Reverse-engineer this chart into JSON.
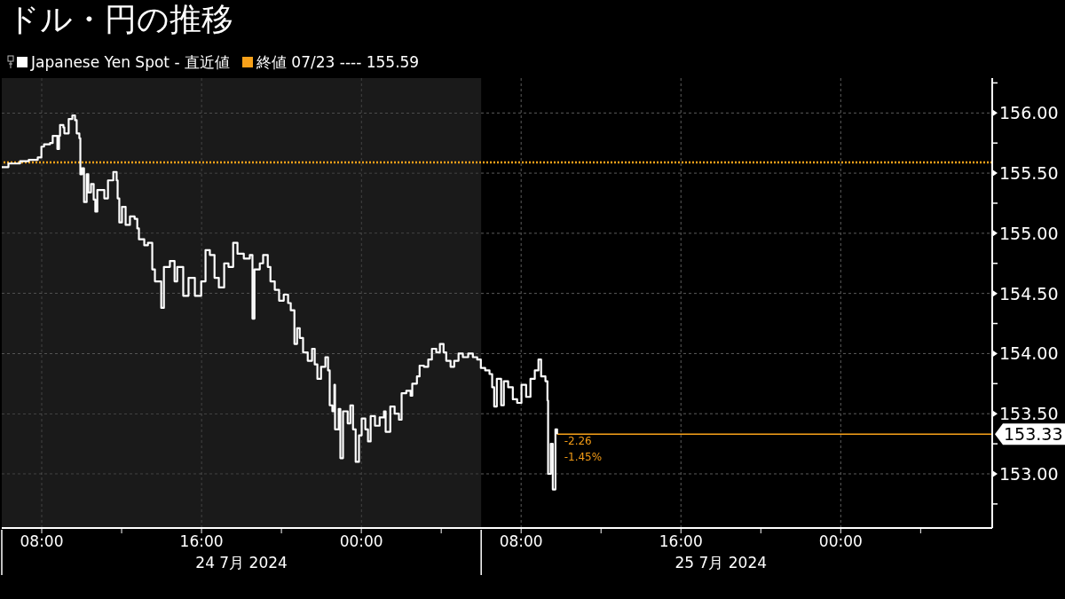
{
  "chart_data": {
    "type": "step",
    "title": "ドル・円の推移",
    "x": [
      "2024-07-24T06:00",
      "2024-07-24T06:20",
      "2024-07-24T06:55",
      "2024-07-24T07:21",
      "2024-07-24T07:48",
      "2024-07-24T07:59",
      "2024-07-24T08:07",
      "2024-07-24T08:25",
      "2024-07-24T08:33",
      "2024-07-24T08:47",
      "2024-07-24T08:52",
      "2024-07-24T08:55",
      "2024-07-24T09:05",
      "2024-07-24T09:08",
      "2024-07-24T09:21",
      "2024-07-24T09:32",
      "2024-07-24T09:40",
      "2024-07-24T09:45",
      "2024-07-24T09:53",
      "2024-07-24T09:56",
      "2024-07-24T10:01",
      "2024-07-24T10:07",
      "2024-07-24T10:15",
      "2024-07-24T10:20",
      "2024-07-24T10:28",
      "2024-07-24T10:36",
      "2024-07-24T10:41",
      "2024-07-24T10:47",
      "2024-07-24T11:08",
      "2024-07-24T11:19",
      "2024-07-24T11:35",
      "2024-07-24T11:45",
      "2024-07-24T11:48",
      "2024-07-24T11:53",
      "2024-07-24T12:01",
      "2024-07-24T12:12",
      "2024-07-24T12:25",
      "2024-07-24T12:39",
      "2024-07-24T12:47",
      "2024-07-24T12:52",
      "2024-07-24T13:08",
      "2024-07-24T13:19",
      "2024-07-24T13:32",
      "2024-07-24T13:40",
      "2024-07-24T13:59",
      "2024-07-24T14:07",
      "2024-07-24T14:25",
      "2024-07-24T14:39",
      "2024-07-24T14:47",
      "2024-07-24T15:05",
      "2024-07-24T15:21",
      "2024-07-24T15:40",
      "2024-07-24T15:59",
      "2024-07-24T16:12",
      "2024-07-24T16:25",
      "2024-07-24T16:39",
      "2024-07-24T16:52",
      "2024-07-24T17:08",
      "2024-07-24T17:21",
      "2024-07-24T17:35",
      "2024-07-24T17:48",
      "2024-07-24T18:07",
      "2024-07-24T18:25",
      "2024-07-24T18:33",
      "2024-07-24T18:39",
      "2024-07-24T18:55",
      "2024-07-24T19:05",
      "2024-07-24T19:19",
      "2024-07-24T19:27",
      "2024-07-24T19:40",
      "2024-07-24T19:53",
      "2024-07-24T20:07",
      "2024-07-24T20:20",
      "2024-07-24T20:28",
      "2024-07-24T20:39",
      "2024-07-24T20:47",
      "2024-07-24T20:55",
      "2024-07-24T21:05",
      "2024-07-24T21:19",
      "2024-07-24T21:32",
      "2024-07-24T21:40",
      "2024-07-24T21:48",
      "2024-07-24T21:59",
      "2024-07-24T22:12",
      "2024-07-24T22:20",
      "2024-07-24T22:25",
      "2024-07-24T22:33",
      "2024-07-24T22:39",
      "2024-07-24T22:41",
      "2024-07-24T22:52",
      "2024-07-24T22:57",
      "2024-07-24T23:05",
      "2024-07-24T23:19",
      "2024-07-24T23:27",
      "2024-07-24T23:35",
      "2024-07-24T23:43",
      "2024-07-24T23:53",
      "2024-07-25T00:01",
      "2024-07-25T00:12",
      "2024-07-25T00:20",
      "2024-07-25T00:28",
      "2024-07-25T00:41",
      "2024-07-25T00:55",
      "2024-07-25T01:08",
      "2024-07-25T01:13",
      "2024-07-25T01:27",
      "2024-07-25T01:40",
      "2024-07-25T01:53",
      "2024-07-25T02:01",
      "2024-07-25T02:15",
      "2024-07-25T02:28",
      "2024-07-25T02:33",
      "2024-07-25T02:47",
      "2024-07-25T02:55",
      "2024-07-25T03:08",
      "2024-07-25T03:21",
      "2024-07-25T03:32",
      "2024-07-25T03:45",
      "2024-07-25T03:56",
      "2024-07-25T04:07",
      "2024-07-25T04:15",
      "2024-07-25T04:28",
      "2024-07-25T04:39",
      "2024-07-25T04:52",
      "2024-07-25T05:05",
      "2024-07-25T05:21",
      "2024-07-25T05:35",
      "2024-07-25T05:48",
      "2024-07-25T05:59",
      "2024-07-25T06:12",
      "2024-07-25T06:25",
      "2024-07-25T06:33",
      "2024-07-25T06:39",
      "2024-07-25T06:47",
      "2024-07-25T07:00",
      "2024-07-25T07:08",
      "2024-07-25T07:21",
      "2024-07-25T07:35",
      "2024-07-25T07:48",
      "2024-07-25T08:01",
      "2024-07-25T08:15",
      "2024-07-25T08:28",
      "2024-07-25T08:41",
      "2024-07-25T08:52",
      "2024-07-25T09:00",
      "2024-07-25T09:13",
      "2024-07-25T09:19",
      "2024-07-25T09:21",
      "2024-07-25T09:29",
      "2024-07-25T09:35",
      "2024-07-25T09:43",
      "2024-07-25T09:48"
    ],
    "series": [
      {
        "name": "Japanese Yen Spot - 直近値",
        "color": "#ffffff",
        "values": [
          155.55,
          155.58,
          155.6,
          155.61,
          155.63,
          155.72,
          155.74,
          155.75,
          155.81,
          155.7,
          155.81,
          155.9,
          155.88,
          155.83,
          155.95,
          155.98,
          155.94,
          155.83,
          155.79,
          155.49,
          155.54,
          155.26,
          155.49,
          155.34,
          155.41,
          155.28,
          155.18,
          155.36,
          155.29,
          155.44,
          155.51,
          155.44,
          155.29,
          155.09,
          155.22,
          155.07,
          155.14,
          155.12,
          155.04,
          154.95,
          154.9,
          154.92,
          154.7,
          154.6,
          154.38,
          154.72,
          154.77,
          154.6,
          154.72,
          154.48,
          154.63,
          154.48,
          154.6,
          154.86,
          154.82,
          154.63,
          154.55,
          154.75,
          154.72,
          154.92,
          154.83,
          154.79,
          154.82,
          154.29,
          154.7,
          154.75,
          154.82,
          154.72,
          154.6,
          154.53,
          154.44,
          154.49,
          154.42,
          154.36,
          154.08,
          154.21,
          154.13,
          154.01,
          153.94,
          154.04,
          153.91,
          153.79,
          153.89,
          153.97,
          153.86,
          153.57,
          153.52,
          153.74,
          153.37,
          153.54,
          153.13,
          153.52,
          153.42,
          153.57,
          153.37,
          153.1,
          153.32,
          153.46,
          153.37,
          153.27,
          153.48,
          153.4,
          153.47,
          153.52,
          153.35,
          153.56,
          153.5,
          153.45,
          153.67,
          153.69,
          153.65,
          153.75,
          153.81,
          153.9,
          153.89,
          153.95,
          154.04,
          154.01,
          154.08,
          154.01,
          153.94,
          153.89,
          153.94,
          154.0,
          153.97,
          154.0,
          153.97,
          153.95,
          153.88,
          153.86,
          153.83,
          153.72,
          153.56,
          153.79,
          153.57,
          153.77,
          153.72,
          153.62,
          153.59,
          153.74,
          153.64,
          153.79,
          153.86,
          153.95,
          153.81,
          153.77,
          153.61,
          153.0,
          153.25,
          152.87,
          153.37,
          153.33
        ]
      }
    ],
    "xlim": [
      "2024-07-24T06:00",
      "2024-07-26T07:35"
    ],
    "xticks": [
      {
        "value": "2024-07-24T08:00",
        "label": "08:00"
      },
      {
        "value": "2024-07-24T12:00",
        "label": null
      },
      {
        "value": "2024-07-24T16:00",
        "label": "16:00"
      },
      {
        "value": "2024-07-24T20:00",
        "label": null
      },
      {
        "value": "2024-07-25T00:00",
        "label": "00:00"
      },
      {
        "value": "2024-07-25T04:00",
        "label": null
      },
      {
        "value": "2024-07-25T08:00",
        "label": "08:00"
      },
      {
        "value": "2024-07-25T12:00",
        "label": null
      },
      {
        "value": "2024-07-25T16:00",
        "label": "16:00"
      },
      {
        "value": "2024-07-25T20:00",
        "label": null
      },
      {
        "value": "2024-07-26T00:00",
        "label": "00:00"
      },
      {
        "value": "2024-07-26T04:00",
        "label": null
      }
    ],
    "x2lim": [
      "2024-07-24T06:00",
      "2024-07-26T07:35"
    ],
    "x2ticks": [
      {
        "value": "2024-07-24T18:00",
        "label": "24 7月 2024"
      },
      {
        "value": "2024-07-25T18:00",
        "label": "25 7月 2024"
      }
    ],
    "ylim": [
      152.55,
      156.29
    ],
    "yticks": [
      {
        "value": 152.75,
        "label": null
      },
      {
        "value": 153,
        "label": "153.00"
      },
      {
        "value": 153.25,
        "label": null
      },
      {
        "value": 153.5,
        "label": "153.50"
      },
      {
        "value": 153.75,
        "label": null
      },
      {
        "value": 154,
        "label": "154.00"
      },
      {
        "value": 154.25,
        "label": null
      },
      {
        "value": 154.5,
        "label": "154.50"
      },
      {
        "value": 154.75,
        "label": null
      },
      {
        "value": 155,
        "label": "155.00"
      },
      {
        "value": 155.25,
        "label": null
      },
      {
        "value": 155.5,
        "label": "155.50"
      },
      {
        "value": 155.75,
        "label": null
      },
      {
        "value": 156,
        "label": "156.00"
      },
      {
        "value": 156.25,
        "label": null
      }
    ],
    "grid": true,
    "legend": "top left",
    "ref_lines": [
      {
        "axis": "y",
        "value": 155.59,
        "label": "終値 07/23 ---- 155.59",
        "color": "#f7a11a",
        "line_style": "dotted"
      },
      {
        "axis": "y",
        "value": 153.33,
        "label": "153.33",
        "color": "#f7a11a",
        "line_style": "solid"
      }
    ],
    "bands": [
      {
        "axis": "x",
        "from": "2024-07-24T06:00",
        "to": "2024-07-25T06:00",
        "color": "#1a1a1a"
      }
    ],
    "annotations": [
      {
        "text": "-2.26",
        "x": "2024-07-25T09:48",
        "y": 153.33
      },
      {
        "text": "-1.45%",
        "x": "2024-07-25T09:48",
        "y": 153.33
      }
    ]
  }
}
